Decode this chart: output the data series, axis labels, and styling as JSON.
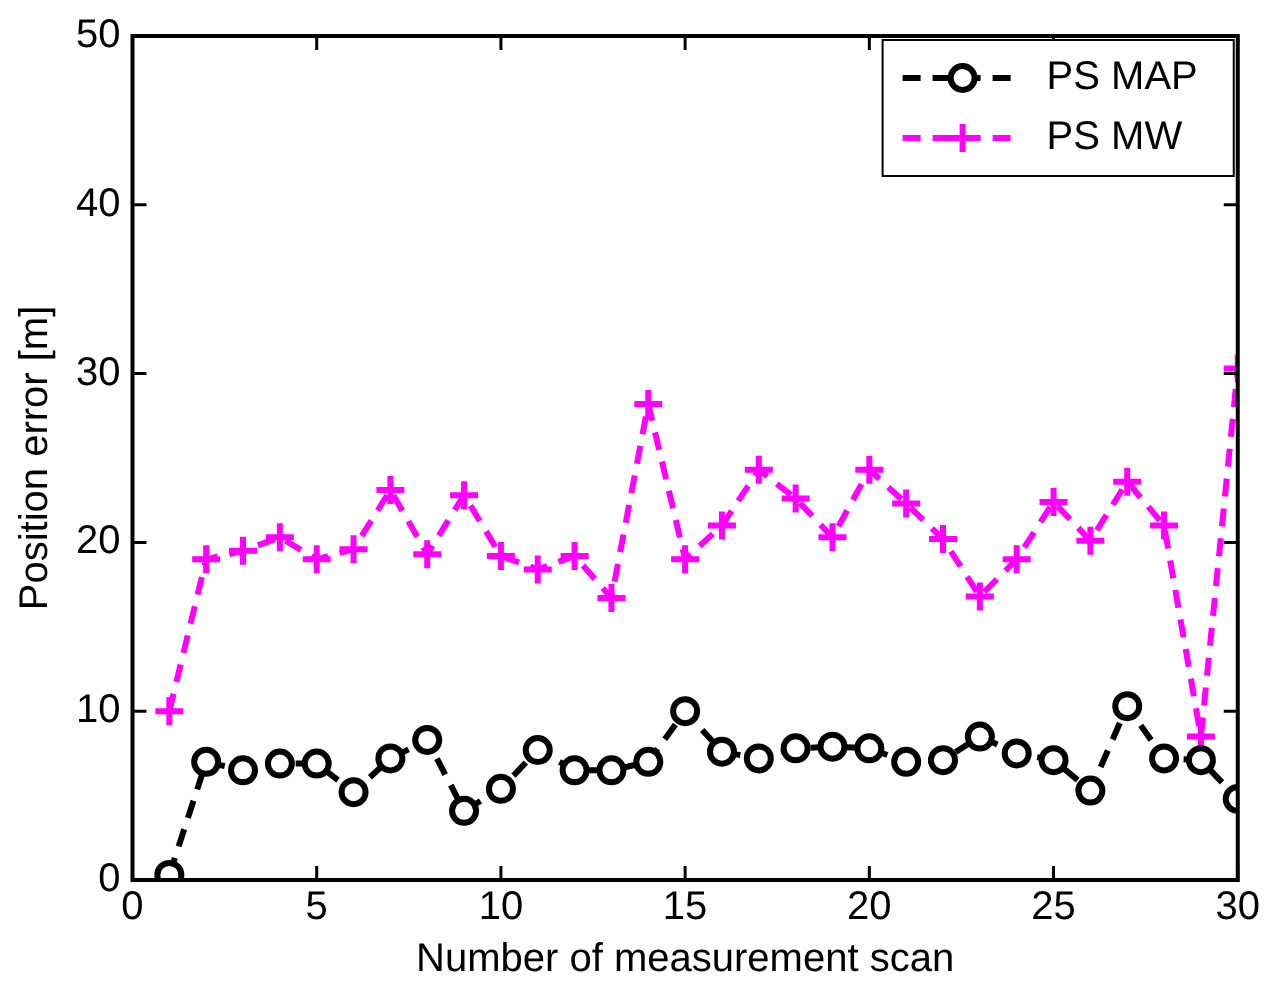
{
  "chart_data": {
    "type": "line",
    "xlabel": "Number of measurement scan",
    "ylabel": "Position error [m]",
    "x": [
      1,
      2,
      3,
      4,
      5,
      6,
      7,
      8,
      9,
      10,
      11,
      12,
      13,
      14,
      15,
      16,
      17,
      18,
      19,
      20,
      21,
      22,
      23,
      24,
      25,
      26,
      27,
      28,
      29,
      30
    ],
    "series": [
      {
        "name": "PS MAP",
        "color": "#000000",
        "marker": "circle",
        "line_style": "dashed",
        "values": [
          0.3,
          7,
          6.5,
          6.9,
          6.9,
          5.2,
          7.2,
          8.3,
          4.1,
          5.4,
          7.7,
          6.5,
          6.5,
          7,
          10,
          7.6,
          7.2,
          7.8,
          7.9,
          7.8,
          7,
          7.1,
          8.5,
          7.5,
          7.1,
          5.3,
          10.3,
          7.2,
          7.1,
          4.8
        ]
      },
      {
        "name": "PS MW",
        "color": "#ff00ff",
        "marker": "cross",
        "line_style": "dashed",
        "values": [
          10,
          19,
          19.5,
          20.3,
          19,
          19.6,
          23.1,
          19.3,
          22.8,
          19.2,
          18.4,
          19.2,
          16.7,
          28.2,
          19,
          21,
          24.3,
          22.6,
          20.3,
          24.3,
          22.3,
          20.2,
          16.8,
          19,
          22.4,
          20.1,
          23.6,
          21,
          8.5,
          30.3
        ]
      }
    ],
    "xlim": [
      0,
      30
    ],
    "xticks": [
      0,
      5,
      10,
      15,
      20,
      25,
      30
    ],
    "ylim": [
      0,
      50
    ],
    "yticks": [
      0,
      10,
      20,
      30,
      40,
      50
    ],
    "grid": false,
    "legend": "top right"
  }
}
